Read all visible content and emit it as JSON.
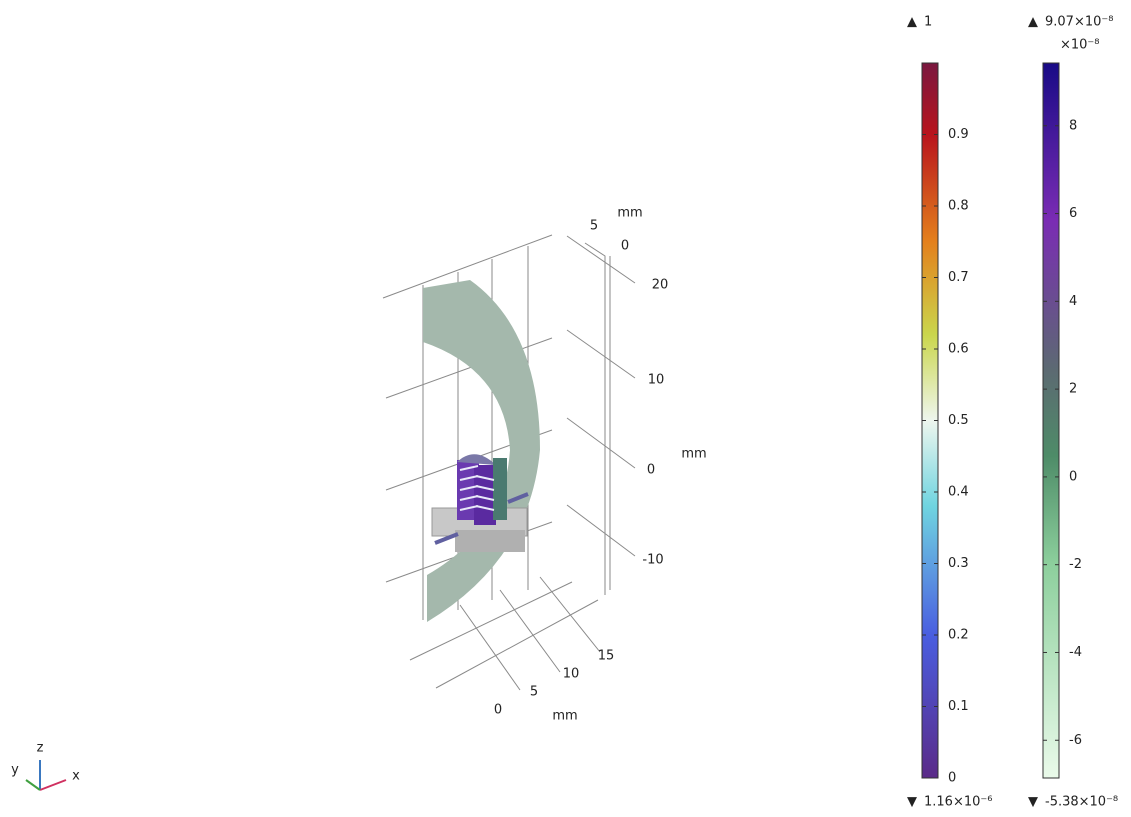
{
  "plot3d": {
    "x_axis": {
      "unit": "mm",
      "ticks": [
        "0",
        "5",
        "10",
        "15"
      ]
    },
    "y_axis": {
      "unit": "mm",
      "ticks": [
        "5",
        "0"
      ]
    },
    "z_axis": {
      "unit": "mm",
      "ticks": [
        "20",
        "10",
        "0",
        "-10"
      ]
    },
    "triad": {
      "x": "x",
      "y": "y",
      "z": "z"
    }
  },
  "colorbars": [
    {
      "max_label": "1",
      "min_label": "1.16×10⁻⁶",
      "lim": [
        0,
        1
      ],
      "ticks": [
        0,
        0.1,
        0.2,
        0.3,
        0.4,
        0.5,
        0.6,
        0.7,
        0.8,
        0.9
      ]
    },
    {
      "max_label": "9.07×10⁻⁸",
      "min_label": "-5.38×10⁻⁸",
      "multiplier": "×10⁻⁸",
      "lim": [
        -6.86,
        9.43
      ],
      "ticks": [
        -6,
        -4,
        -2,
        0,
        2,
        4,
        6,
        8
      ]
    }
  ]
}
